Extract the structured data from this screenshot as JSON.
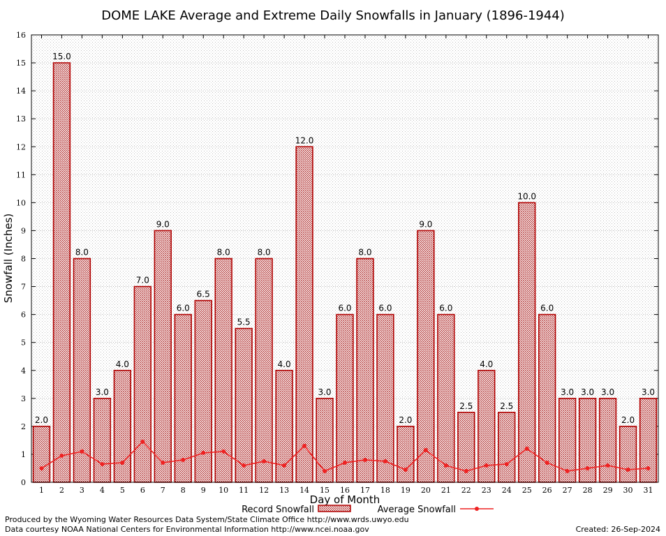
{
  "chart_data": {
    "type": "bar",
    "title": "DOME LAKE Average and Extreme Daily Snowfalls in January (1896-1944)",
    "xlabel": "Day of Month",
    "ylabel": "Snowfall (Inches)",
    "ylim": [
      0,
      16
    ],
    "yticks": [
      "0",
      "1",
      "2",
      "3",
      "4",
      "5",
      "6",
      "7",
      "8",
      "9",
      "10",
      "11",
      "12",
      "13",
      "14",
      "15",
      "16"
    ],
    "grid": true,
    "categories": [
      "1",
      "2",
      "3",
      "4",
      "5",
      "6",
      "7",
      "8",
      "9",
      "10",
      "11",
      "12",
      "13",
      "14",
      "15",
      "16",
      "17",
      "18",
      "19",
      "20",
      "21",
      "22",
      "23",
      "24",
      "25",
      "26",
      "27",
      "28",
      "29",
      "30",
      "31"
    ],
    "series": [
      {
        "name": "Record Snowfall",
        "type": "bar",
        "color": "#b00000",
        "values": [
          2.0,
          15.0,
          8.0,
          3.0,
          4.0,
          7.0,
          9.0,
          6.0,
          6.5,
          8.0,
          5.5,
          8.0,
          4.0,
          12.0,
          3.0,
          6.0,
          8.0,
          6.0,
          2.0,
          9.0,
          6.0,
          2.5,
          4.0,
          2.5,
          10.0,
          6.0,
          3.0,
          3.0,
          3.0,
          2.0,
          3.0
        ],
        "labels": [
          "2.0",
          "15.0",
          "8.0",
          "3.0",
          "4.0",
          "7.0",
          "9.0",
          "6.0",
          "6.5",
          "8.0",
          "5.5",
          "8.0",
          "4.0",
          "12.0",
          "3.0",
          "6.0",
          "8.0",
          "6.0",
          "2.0",
          "9.0",
          "6.0",
          "2.5",
          "4.0",
          "2.5",
          "10.0",
          "6.0",
          "3.0",
          "3.0",
          "3.0",
          "2.0",
          "3.0"
        ]
      },
      {
        "name": "Average Snowfall",
        "type": "line",
        "color": "#ee2222",
        "values": [
          0.5,
          0.95,
          1.1,
          0.65,
          0.7,
          1.45,
          0.7,
          0.8,
          1.05,
          1.1,
          0.6,
          0.75,
          0.6,
          1.3,
          0.4,
          0.7,
          0.8,
          0.75,
          0.45,
          1.15,
          0.6,
          0.4,
          0.6,
          0.65,
          1.2,
          0.7,
          0.4,
          0.5,
          0.6,
          0.45,
          0.5
        ]
      }
    ],
    "legend": [
      "Record Snowfall",
      "Average Snowfall"
    ],
    "legend_position": "bottom-center"
  },
  "footer": {
    "produced": "Produced by the Wyoming Water Resources Data System/State Climate Office http://www.wrds.uwyo.edu",
    "courtesy": "Data courtesy NOAA National Centers for Environmental Information http://www.ncei.noaa.gov",
    "created": "Created:  26-Sep-2024"
  }
}
